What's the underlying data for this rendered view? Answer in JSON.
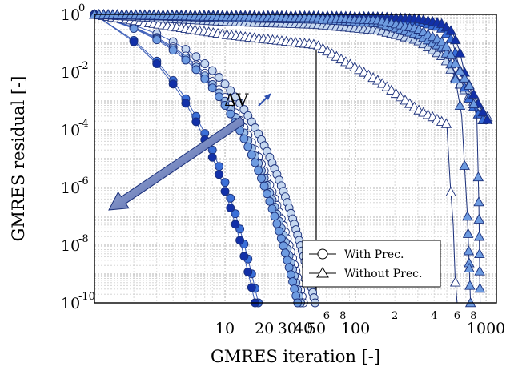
{
  "chart_data": {
    "type": "line",
    "xlabel": "GMRES iteration [-]",
    "ylabel": "GMRES residual [-]",
    "x_scale": "log",
    "y_scale": "log",
    "xlim": [
      1,
      1200
    ],
    "ylim": [
      1e-10,
      1
    ],
    "x_tick_labels": [
      {
        "v": 10,
        "t": "10"
      },
      {
        "v": 20,
        "t": "20"
      },
      {
        "v": 30,
        "t": "30"
      },
      {
        "v": 40,
        "t": "40"
      },
      {
        "v": 50,
        "t": "50"
      },
      {
        "v": 60,
        "t": "6"
      },
      {
        "v": 80,
        "t": "8"
      },
      {
        "v": 100,
        "t": "100"
      },
      {
        "v": 200,
        "t": "2"
      },
      {
        "v": 400,
        "t": "4"
      },
      {
        "v": 600,
        "t": "6"
      },
      {
        "v": 800,
        "t": "8"
      },
      {
        "v": 1000,
        "t": "1000"
      }
    ],
    "y_tick_labels": [
      {
        "exp": 0,
        "base": "10",
        "sup": "0"
      },
      {
        "exp": -2,
        "base": "10",
        "sup": "-2"
      },
      {
        "exp": -4,
        "base": "10",
        "sup": "-4"
      },
      {
        "exp": -6,
        "base": "10",
        "sup": "-6"
      },
      {
        "exp": -8,
        "base": "10",
        "sup": "-8"
      },
      {
        "exp": -10,
        "base": "10",
        "sup": "-10"
      }
    ],
    "grid": true,
    "reference_line_x": 50,
    "annotation": {
      "text": "ΔV",
      "from": [
        200,
        -4.2
      ],
      "to": [
        2.2,
        -7.2
      ]
    },
    "legend": {
      "position": "bottom-right",
      "entries": [
        {
          "label": "With Prec.",
          "marker": "circle"
        },
        {
          "label": "Without Prec.",
          "marker": "triangle"
        }
      ]
    },
    "series": [
      {
        "marker": "circle",
        "color": "#c6d8f0",
        "n": 49,
        "end_log": -10.0
      },
      {
        "marker": "circle",
        "color": "#ffffff",
        "n": 40,
        "end_log": -10.0
      },
      {
        "marker": "circle",
        "color": "#9ebfe8",
        "n": 38,
        "end_log": -10.0
      },
      {
        "marker": "circle",
        "color": "#6d9be0",
        "n": 36,
        "end_log": -10.0
      },
      {
        "marker": "circle",
        "color": "#3a6fd8",
        "n": 18,
        "end_log": -10.0
      },
      {
        "marker": "circle",
        "color": "#1230a8",
        "n": 17,
        "end_log": -10.0
      },
      {
        "marker": "triangle",
        "color": "#ffffff",
        "pts": [
          [
            1,
            0
          ],
          [
            10,
            -0.7
          ],
          [
            50,
            -1.05
          ],
          [
            150,
            -2.3
          ],
          [
            300,
            -3.3
          ],
          [
            500,
            -3.8
          ],
          [
            530,
            -5.8
          ],
          [
            560,
            -7.3
          ],
          [
            580,
            -9.2
          ],
          [
            600,
            -10.0
          ]
        ]
      },
      {
        "marker": "triangle",
        "color": "#c6d8f0",
        "pts": [
          [
            1,
            0
          ],
          [
            10,
            -0.25
          ],
          [
            50,
            -0.35
          ],
          [
            150,
            -0.55
          ],
          [
            300,
            -0.9
          ],
          [
            480,
            -1.5
          ],
          [
            600,
            -2.3
          ],
          [
            800,
            -3.0
          ],
          [
            1000,
            -3.5
          ],
          [
            1100,
            -3.7
          ]
        ]
      },
      {
        "marker": "triangle",
        "color": "#6d9be0",
        "pts": [
          [
            1,
            0
          ],
          [
            10,
            -0.12
          ],
          [
            50,
            -0.17
          ],
          [
            150,
            -0.3
          ],
          [
            300,
            -0.7
          ],
          [
            480,
            -1.2
          ],
          [
            570,
            -2.0
          ],
          [
            650,
            -3.5
          ],
          [
            720,
            -7.0
          ],
          [
            760,
            -10.0
          ]
        ]
      },
      {
        "marker": "triangle",
        "color": "#3a6fd8",
        "pts": [
          [
            1,
            0
          ],
          [
            10,
            -0.05
          ],
          [
            50,
            -0.08
          ],
          [
            150,
            -0.12
          ],
          [
            300,
            -0.25
          ],
          [
            450,
            -0.45
          ],
          [
            550,
            -0.9
          ],
          [
            620,
            -1.8
          ],
          [
            700,
            -2.7
          ],
          [
            850,
            -3.4
          ],
          [
            1000,
            -3.8
          ]
        ]
      },
      {
        "marker": "triangle",
        "color": "#1230a8",
        "pts": [
          [
            1,
            0
          ],
          [
            10,
            -0.03
          ],
          [
            50,
            -0.05
          ],
          [
            150,
            -0.08
          ],
          [
            300,
            -0.15
          ],
          [
            450,
            -0.3
          ],
          [
            550,
            -0.6
          ],
          [
            620,
            -1.2
          ],
          [
            700,
            -2.2
          ],
          [
            850,
            -3.0
          ],
          [
            1000,
            -3.6
          ],
          [
            1100,
            -3.8
          ]
        ]
      },
      {
        "marker": "triangle",
        "color": "#6d9be0",
        "pts": [
          [
            1,
            0
          ],
          [
            10,
            -0.08
          ],
          [
            50,
            -0.12
          ],
          [
            150,
            -0.2
          ],
          [
            300,
            -0.5
          ],
          [
            480,
            -1.0
          ],
          [
            600,
            -1.8
          ],
          [
            750,
            -2.5
          ],
          [
            850,
            -3.6
          ],
          [
            880,
            -6.5
          ],
          [
            900,
            -10.0
          ]
        ]
      }
    ]
  }
}
